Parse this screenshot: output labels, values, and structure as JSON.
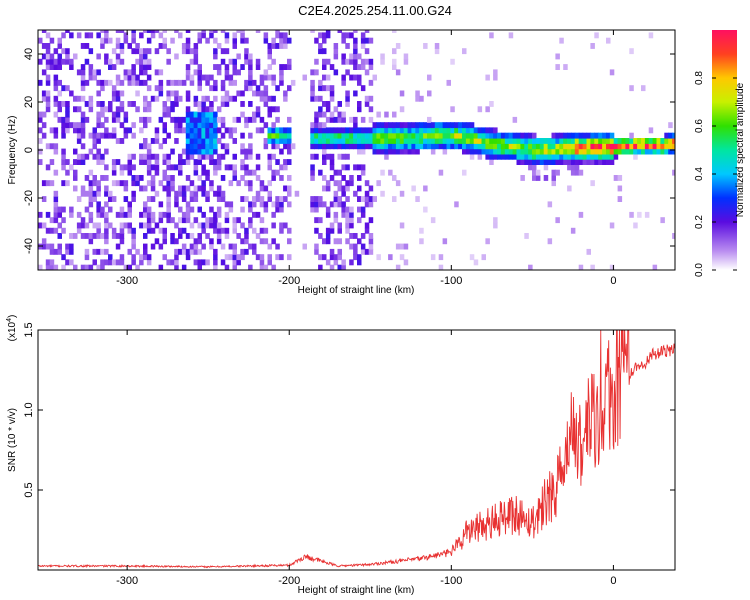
{
  "title": "C2E4.2025.254.11.00.G24",
  "chart_data": [
    {
      "type": "heatmap",
      "xlabel": "Height of straight line (km)",
      "ylabel": "Frequency (Hz)",
      "xlim": [
        -355,
        38
      ],
      "ylim": [
        -50,
        50
      ],
      "xticks": [
        -300,
        -200,
        -100,
        0
      ],
      "yticks": [
        -40,
        -20,
        0,
        20,
        40
      ],
      "colorbar": {
        "label": "Normalized spectral amplitude",
        "range": [
          0,
          1
        ],
        "ticks": [
          0.0,
          0.2,
          0.4,
          0.6,
          0.8
        ],
        "tick_labels": [
          "0.0",
          "0.2",
          "0.4",
          "0.6",
          "0.8"
        ]
      },
      "features": {
        "noise_region_km": [
          -355,
          -150
        ],
        "gaps_km": [
          [
            -200,
            -188
          ],
          [
            -150,
            -105
          ]
        ],
        "ridge_center_hz": [
          [
            -210,
            5
          ],
          [
            -190,
            4
          ],
          [
            -150,
            4
          ],
          [
            -130,
            4
          ],
          [
            -110,
            5
          ],
          [
            -100,
            5
          ],
          [
            -90,
            4
          ],
          [
            -80,
            2
          ],
          [
            -70,
            1
          ],
          [
            -60,
            0
          ],
          [
            -50,
            -1
          ],
          [
            -40,
            -1
          ],
          [
            -30,
            0
          ],
          [
            -20,
            0
          ],
          [
            -10,
            0
          ],
          [
            0,
            0
          ],
          [
            10,
            1
          ],
          [
            20,
            1
          ],
          [
            30,
            1
          ],
          [
            38,
            2
          ]
        ]
      }
    },
    {
      "type": "line",
      "xlabel": "Height of straight line (km)",
      "ylabel": "SNR (10 * v/v)",
      "y_multiplier": "(x10",
      "y_multiplier_exp": "4",
      "xlim": [
        -355,
        38
      ],
      "ylim": [
        0,
        15000
      ],
      "xticks": [
        -300,
        -200,
        -100,
        0
      ],
      "yticks": [
        5000,
        10000,
        15000
      ],
      "ytick_labels": [
        "0.5",
        "1.0",
        "1.5"
      ],
      "color": "#e83232",
      "series": [
        {
          "x": [
            -355,
            -300,
            -250,
            -200,
            -190,
            -170,
            -150,
            -120,
            -100,
            -90,
            -80,
            -70,
            -60,
            -50,
            -40,
            -30,
            -25,
            -20,
            -15,
            -10,
            -5,
            0,
            5,
            10,
            15,
            20,
            25,
            30,
            38
          ],
          "y": [
            250,
            250,
            200,
            300,
            850,
            250,
            350,
            700,
            1100,
            2400,
            2600,
            3200,
            3500,
            3000,
            4500,
            6000,
            8500,
            8000,
            9000,
            9000,
            10500,
            11000,
            12000,
            12200,
            12800,
            13000,
            13500,
            13600,
            13800
          ]
        }
      ]
    }
  ]
}
